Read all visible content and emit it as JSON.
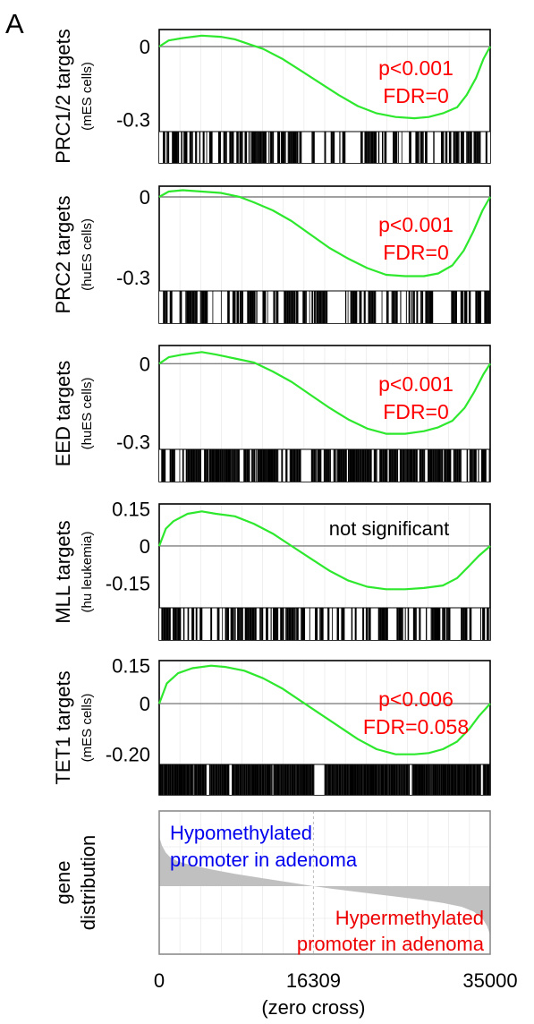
{
  "panel_label": "A",
  "colors": {
    "enrichment_line": "#2ee82e",
    "zero_line": "#808080",
    "stat_text": "#ff0000",
    "plain_text": "#000000",
    "hypo_text": "#0000ee",
    "hyper_text": "#ee0000",
    "distribution_fill": "#c0c0c0",
    "frame": "#000000",
    "grid": "#e4e4e4"
  },
  "chart_data": [
    {
      "type": "line",
      "ylabel": "PRC1/2 targets",
      "ylabel_sub": "(mES cells)",
      "yticks": [
        0,
        -0.3
      ],
      "ytick_labels": [
        "0",
        "-0.3"
      ],
      "ylim": [
        -0.35,
        0.07
      ],
      "xlim": [
        0,
        35000
      ],
      "stat_lines": [
        "p<0.001",
        "FDR=0"
      ],
      "stat_color": "stat",
      "series": [
        {
          "x": [
            0,
            1000,
            2500,
            4500,
            6500,
            8000,
            9500,
            11000,
            13000,
            15000,
            17000,
            19000,
            21000,
            23000,
            25000,
            27000,
            28500,
            30000,
            31500,
            32500,
            33500,
            34300,
            35000
          ],
          "y": [
            0,
            0.025,
            0.035,
            0.045,
            0.04,
            0.03,
            0.01,
            -0.01,
            -0.05,
            -0.1,
            -0.15,
            -0.2,
            -0.245,
            -0.275,
            -0.29,
            -0.295,
            -0.29,
            -0.275,
            -0.25,
            -0.2,
            -0.13,
            -0.05,
            0.0
          ]
        }
      ],
      "barcode": {
        "density": 0.55,
        "gaps": [
          [
            19700,
            21000
          ]
        ]
      }
    },
    {
      "type": "line",
      "ylabel": "PRC2 targets",
      "ylabel_sub": "(huES cells)",
      "yticks": [
        0,
        -0.3
      ],
      "ytick_labels": [
        "0",
        "-0.3"
      ],
      "ylim": [
        -0.35,
        0.04
      ],
      "xlim": [
        0,
        35000
      ],
      "stat_lines": [
        "p<0.001",
        "FDR=0"
      ],
      "stat_color": "stat",
      "series": [
        {
          "x": [
            0,
            1000,
            2500,
            4500,
            6500,
            8500,
            10000,
            12000,
            14000,
            16000,
            18000,
            20000,
            22000,
            24000,
            26000,
            28000,
            29500,
            31000,
            32200,
            33200,
            34200,
            35000
          ],
          "y": [
            0,
            0.02,
            0.025,
            0.02,
            0.015,
            0.0,
            -0.02,
            -0.05,
            -0.09,
            -0.14,
            -0.19,
            -0.23,
            -0.265,
            -0.29,
            -0.295,
            -0.295,
            -0.285,
            -0.255,
            -0.2,
            -0.13,
            -0.05,
            0.0
          ]
        }
      ],
      "barcode": {
        "density": 0.5,
        "gaps": [
          [
            17800,
            19000
          ]
        ]
      }
    },
    {
      "type": "line",
      "ylabel": "EED targets",
      "ylabel_sub": "(huES cells)",
      "yticks": [
        0,
        -0.3
      ],
      "ytick_labels": [
        "0",
        "-0.3"
      ],
      "ylim": [
        -0.33,
        0.07
      ],
      "xlim": [
        0,
        35000
      ],
      "stat_lines": [
        "p<0.001",
        "FDR=0"
      ],
      "stat_color": "stat",
      "series": [
        {
          "x": [
            0,
            1000,
            2500,
            4500,
            6000,
            8000,
            10000,
            12000,
            14000,
            16000,
            18000,
            20000,
            22000,
            24000,
            26000,
            28000,
            29500,
            31000,
            32300,
            33300,
            34300,
            35000
          ],
          "y": [
            0,
            0.025,
            0.035,
            0.045,
            0.035,
            0.02,
            0.005,
            -0.03,
            -0.07,
            -0.12,
            -0.17,
            -0.215,
            -0.25,
            -0.27,
            -0.27,
            -0.26,
            -0.245,
            -0.22,
            -0.17,
            -0.11,
            -0.04,
            0.0
          ]
        }
      ],
      "barcode": {
        "density": 0.8,
        "gaps": [
          [
            15000,
            16000
          ]
        ]
      }
    },
    {
      "type": "line",
      "ylabel": "MLL targets",
      "ylabel_sub": "(hu leukemia)",
      "yticks": [
        0.15,
        0,
        -0.15
      ],
      "ytick_labels": [
        "0.15",
        "0",
        "-0.15"
      ],
      "ylim": [
        -0.25,
        0.17
      ],
      "xlim": [
        0,
        35000
      ],
      "stat_lines": [
        "not significant"
      ],
      "stat_color": "plain",
      "series": [
        {
          "x": [
            0,
            700,
            1500,
            3000,
            4500,
            6000,
            8000,
            10000,
            12000,
            14000,
            16000,
            18000,
            20000,
            22000,
            24000,
            26000,
            28000,
            30000,
            31500,
            32800,
            33800,
            35000
          ],
          "y": [
            0,
            0.07,
            0.1,
            0.13,
            0.14,
            0.13,
            0.12,
            0.09,
            0.05,
            0.0,
            -0.05,
            -0.1,
            -0.14,
            -0.165,
            -0.175,
            -0.175,
            -0.17,
            -0.16,
            -0.13,
            -0.08,
            -0.04,
            0.0
          ]
        }
      ],
      "barcode": {
        "density": 0.55,
        "gaps": [
          [
            24200,
            25000
          ]
        ]
      }
    },
    {
      "type": "line",
      "ylabel": "TET1 targets",
      "ylabel_sub": "(mES cells)",
      "yticks": [
        0.15,
        0,
        -0.2
      ],
      "ytick_labels": [
        "0.15",
        "0",
        "-0.20"
      ],
      "ylim": [
        -0.24,
        0.17
      ],
      "xlim": [
        0,
        35000
      ],
      "stat_lines": [
        "p<0.006",
        "FDR=0.058"
      ],
      "stat_color": "stat",
      "series": [
        {
          "x": [
            0,
            800,
            2000,
            3500,
            5500,
            7000,
            9000,
            11000,
            13000,
            15000,
            17000,
            19000,
            21000,
            23000,
            25000,
            27000,
            28500,
            30000,
            31500,
            32800,
            33800,
            35000
          ],
          "y": [
            0,
            0.08,
            0.12,
            0.14,
            0.15,
            0.145,
            0.13,
            0.1,
            0.06,
            0.01,
            -0.04,
            -0.09,
            -0.14,
            -0.18,
            -0.2,
            -0.2,
            -0.195,
            -0.18,
            -0.15,
            -0.1,
            -0.05,
            0.0
          ]
        }
      ],
      "barcode": {
        "density": 0.97,
        "gaps": [
          [
            16400,
            17400
          ],
          [
            5000,
            5150
          ]
        ]
      }
    },
    {
      "type": "area",
      "ylabel": "gene",
      "ylabel_sub": "distribution",
      "xlim": [
        0,
        35000
      ],
      "zero_cross": 16309,
      "xticks": [
        0,
        16309,
        35000
      ],
      "xtick_labels": [
        "0",
        "16309",
        "35000"
      ],
      "xlabel_sub": "(zero cross)",
      "hypo_label": [
        "Hypomethylated",
        "promoter in adenoma"
      ],
      "hyper_label": [
        "Hypermethylated",
        "promoter in adenoma"
      ],
      "series": [
        {
          "x": [
            0,
            300,
            700,
            1200,
            2000,
            3500,
            5500,
            8000,
            11000,
            14000,
            16309,
            18500,
            21500,
            24500,
            27500,
            30000,
            32000,
            33300,
            34200,
            34700,
            35000
          ],
          "y": [
            1.0,
            0.82,
            0.68,
            0.58,
            0.5,
            0.42,
            0.34,
            0.25,
            0.16,
            0.07,
            0.0,
            -0.06,
            -0.13,
            -0.2,
            -0.27,
            -0.34,
            -0.42,
            -0.52,
            -0.66,
            -0.82,
            -1.0
          ]
        }
      ]
    }
  ]
}
